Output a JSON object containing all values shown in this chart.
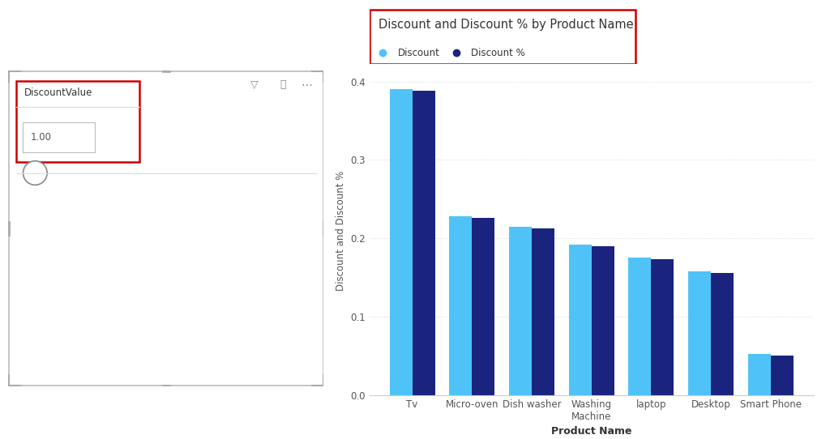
{
  "categories": [
    "Tv",
    "Micro-oven",
    "Dish washer",
    "Washing\nMachine",
    "laptop",
    "Desktop",
    "Smart Phone"
  ],
  "discount_values": [
    0.39,
    0.228,
    0.215,
    0.192,
    0.175,
    0.158,
    0.052
  ],
  "discount_pct_values": [
    0.388,
    0.226,
    0.213,
    0.19,
    0.173,
    0.156,
    0.05
  ],
  "discount_color": "#4FC3F7",
  "discount_pct_color": "#1A237E",
  "title": "Discount and Discount % by Product Name",
  "title_color": "#333333",
  "ylabel": "Discount and Discount %",
  "xlabel": "Product Name",
  "ylim": [
    0,
    0.42
  ],
  "yticks": [
    0.0,
    0.1,
    0.2,
    0.3,
    0.4
  ],
  "legend_labels": [
    "Discount",
    "Discount %"
  ],
  "title_box_color": "#CC0000",
  "background_color": "#FFFFFF",
  "left_panel_bg": "#FFFFFF",
  "left_label": "DiscountValue",
  "left_value": "1.00",
  "corner_color": "#AAAAAA",
  "icons_color": "#888888"
}
